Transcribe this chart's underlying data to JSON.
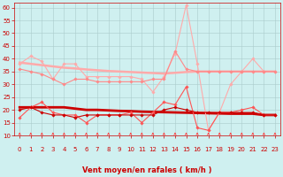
{
  "xlabel": "Vent moyen/en rafales ( km/h )",
  "bg_color": "#cff0f0",
  "grid_color": "#aacccc",
  "xlim": [
    -0.5,
    23.5
  ],
  "ylim": [
    10,
    62
  ],
  "yticks": [
    10,
    15,
    20,
    25,
    30,
    35,
    40,
    45,
    50,
    55,
    60
  ],
  "xticks": [
    0,
    1,
    2,
    3,
    4,
    5,
    6,
    7,
    8,
    9,
    10,
    11,
    12,
    13,
    14,
    15,
    16,
    17,
    18,
    19,
    20,
    21,
    22,
    23
  ],
  "x": [
    0,
    1,
    2,
    3,
    4,
    5,
    6,
    7,
    8,
    9,
    10,
    11,
    12,
    13,
    14,
    15,
    16,
    17,
    18,
    19,
    20,
    21,
    22,
    23
  ],
  "series_order": [
    "trend_rafales",
    "rafales_light1",
    "rafales_medium",
    "trend_moyen",
    "moyen_light",
    "moyen_medium"
  ],
  "series": {
    "rafales_light1": {
      "y": [
        38,
        41,
        39,
        32,
        38,
        38,
        33,
        33,
        33,
        33,
        33,
        32,
        27,
        33,
        42,
        61,
        38,
        12,
        19,
        30,
        35,
        40,
        35,
        35
      ],
      "color": "#ffaaaa",
      "lw": 0.8,
      "marker": "D",
      "ms": 1.8,
      "zorder": 3
    },
    "rafales_medium": {
      "y": [
        36,
        35,
        34,
        32,
        30,
        32,
        32,
        31,
        31,
        31,
        31,
        31,
        32,
        32,
        43,
        36,
        35,
        35,
        35,
        35,
        35,
        35,
        35,
        35
      ],
      "color": "#ff8888",
      "lw": 0.8,
      "marker": "D",
      "ms": 1.8,
      "zorder": 3
    },
    "trend_rafales": {
      "y": [
        38.5,
        38.0,
        37.5,
        37.0,
        36.5,
        36.2,
        35.8,
        35.5,
        35.2,
        35.0,
        34.8,
        34.6,
        34.4,
        34.2,
        34.5,
        34.8,
        35.0,
        35.0,
        35.0,
        35.0,
        35.0,
        35.0,
        35.0,
        35.0
      ],
      "color": "#ffaaaa",
      "lw": 1.8,
      "marker": null,
      "ms": 0,
      "zorder": 2
    },
    "moyen_light": {
      "y": [
        17,
        21,
        23,
        19,
        18,
        18,
        15,
        18,
        18,
        18,
        19,
        15,
        19,
        23,
        22,
        29,
        13,
        12,
        19,
        19,
        20,
        21,
        18,
        18
      ],
      "color": "#ff5555",
      "lw": 0.8,
      "marker": "D",
      "ms": 1.8,
      "zorder": 4
    },
    "moyen_medium": {
      "y": [
        20,
        21,
        19,
        18,
        18,
        17,
        18,
        18,
        18,
        18,
        18,
        18,
        18,
        20,
        21,
        20,
        19,
        19,
        19,
        19,
        19,
        19,
        18,
        18
      ],
      "color": "#cc0000",
      "lw": 0.8,
      "marker": "D",
      "ms": 1.8,
      "zorder": 4
    },
    "trend_moyen": {
      "y": [
        21,
        21,
        21,
        21,
        21,
        20.5,
        20.0,
        20.0,
        19.8,
        19.6,
        19.5,
        19.3,
        19.2,
        19.1,
        19.0,
        18.9,
        18.8,
        18.7,
        18.6,
        18.5,
        18.5,
        18.5,
        18.0,
        18.0
      ],
      "color": "#cc0000",
      "lw": 2.0,
      "marker": null,
      "ms": 0,
      "zorder": 2
    }
  },
  "arrow_color": "#ff4444",
  "tick_color": "#cc0000",
  "label_color": "#cc0000",
  "xlabel_fontsize": 6,
  "tick_fontsize": 5
}
